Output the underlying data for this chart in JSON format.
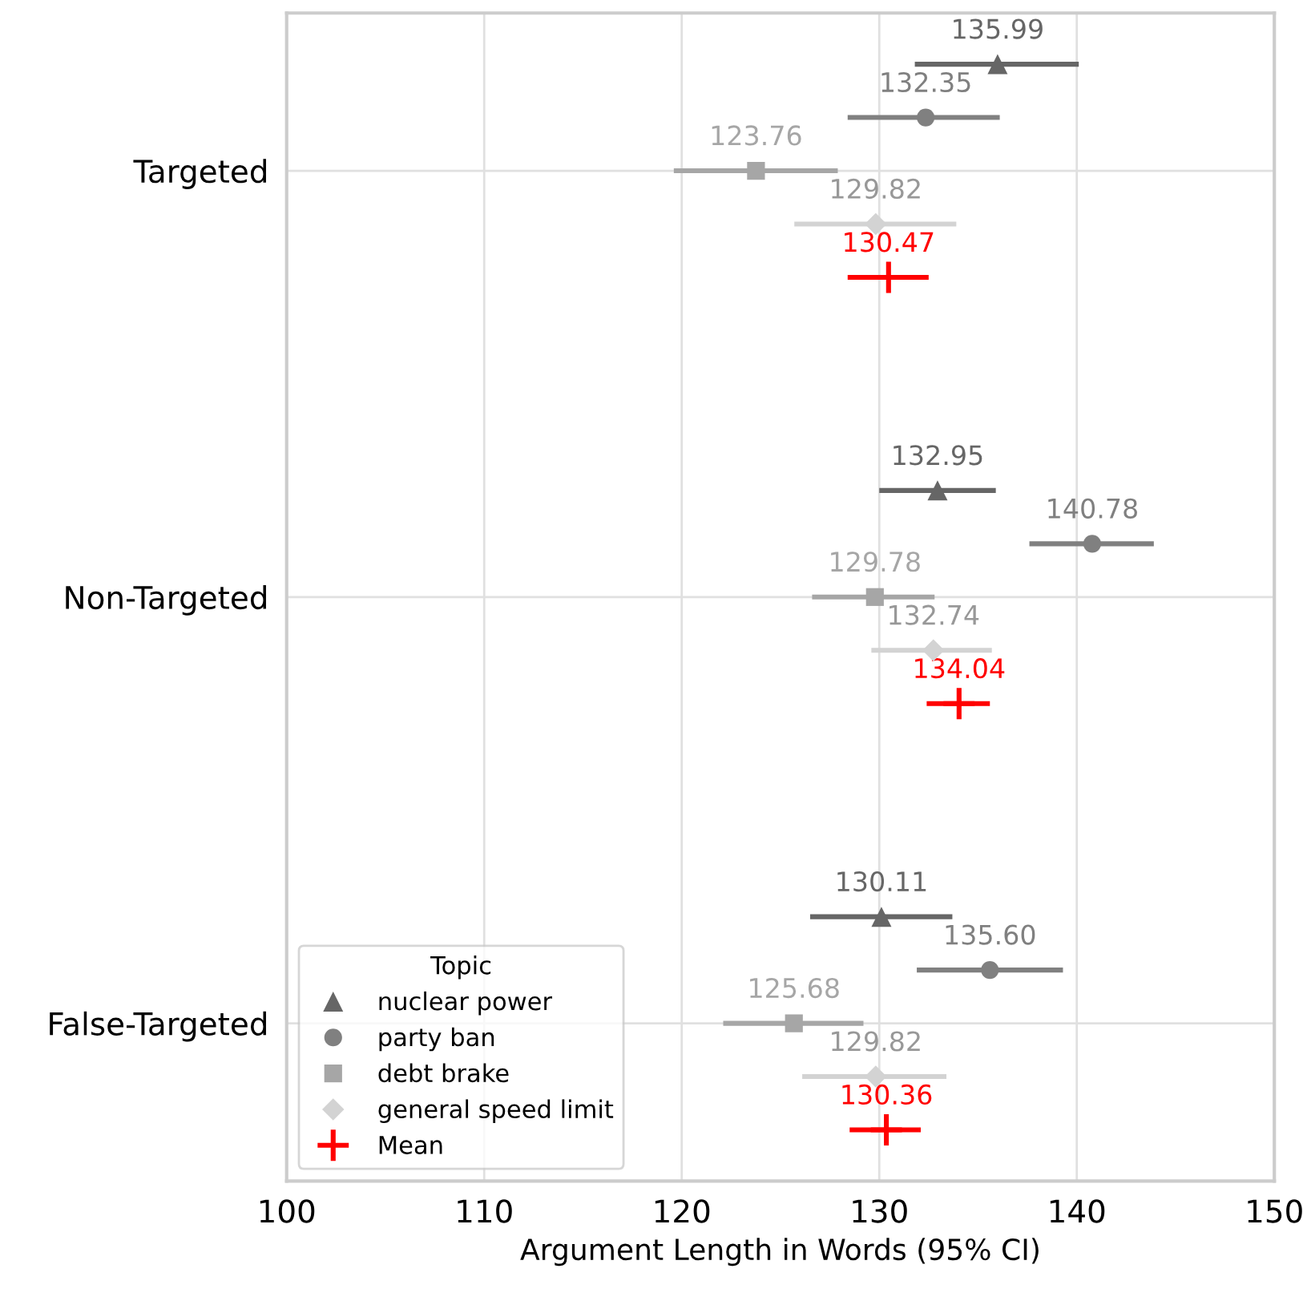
{
  "chart_data": {
    "type": "scatter",
    "orientation": "horizontal",
    "xlabel": "Argument Length in Words (95% CI)",
    "legend_title": "Topic",
    "legend": "bottom left",
    "grid": true,
    "categories": [
      "Targeted",
      "Non-Targeted",
      "False-Targeted"
    ],
    "xlim": [
      100,
      150
    ],
    "xticks": [
      100,
      110,
      120,
      130,
      140,
      150
    ],
    "series": [
      {
        "name": "nuclear power",
        "color": "#666666",
        "marker": "triangle",
        "values": [
          135.99,
          132.95,
          130.11
        ],
        "errors": [
          [
            131.8,
            140.1
          ],
          [
            130.0,
            135.9
          ],
          [
            126.5,
            133.7
          ]
        ],
        "value_labels": [
          "135.99",
          "132.95",
          "130.11"
        ]
      },
      {
        "name": "party ban",
        "color": "#808080",
        "marker": "circle",
        "values": [
          132.35,
          140.78,
          135.6
        ],
        "errors": [
          [
            128.4,
            136.1
          ],
          [
            137.6,
            143.9
          ],
          [
            131.9,
            139.3
          ]
        ],
        "value_labels": [
          "132.35",
          "140.78",
          "135.60"
        ]
      },
      {
        "name": "debt brake",
        "color": "#a6a6a6",
        "marker": "square",
        "values": [
          123.76,
          129.78,
          125.68
        ],
        "errors": [
          [
            119.6,
            127.9
          ],
          [
            126.6,
            132.8
          ],
          [
            122.1,
            129.2
          ]
        ],
        "value_labels": [
          "123.76",
          "129.78",
          "125.68"
        ]
      },
      {
        "name": "general speed limit",
        "color": "#d3d3d3",
        "marker": "diamond",
        "values": [
          129.82,
          132.74,
          129.82
        ],
        "errors": [
          [
            125.7,
            133.9
          ],
          [
            129.6,
            135.7
          ],
          [
            126.1,
            133.4
          ]
        ],
        "value_labels": [
          "129.82",
          "132.74",
          "129.82"
        ]
      },
      {
        "name": "Mean",
        "color": "#ff0000",
        "marker": "cross",
        "values": [
          130.47,
          134.04,
          130.36
        ],
        "errors": [
          [
            128.4,
            132.5
          ],
          [
            132.4,
            135.6
          ],
          [
            128.5,
            132.1
          ]
        ],
        "value_labels": [
          "130.47",
          "134.04",
          "130.36"
        ]
      }
    ]
  }
}
